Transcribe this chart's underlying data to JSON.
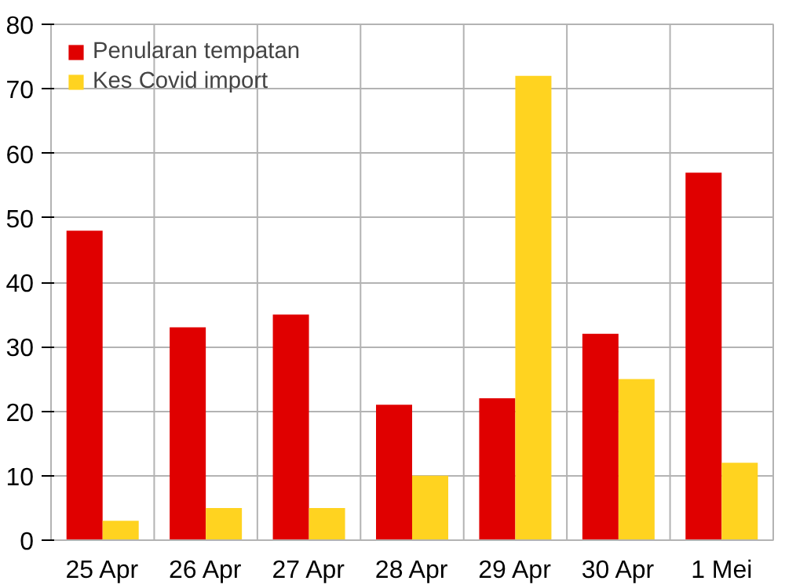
{
  "chart_data": {
    "type": "bar",
    "categories": [
      "25 Apr",
      "26 Apr",
      "27 Apr",
      "28 Apr",
      "29 Apr",
      "30 Apr",
      "1 Mei"
    ],
    "series": [
      {
        "name": "Penularan tempatan",
        "color": "#e00000",
        "values": [
          48,
          33,
          35,
          21,
          22,
          32,
          57
        ]
      },
      {
        "name": "Kes Covid import",
        "color": "#ffd320",
        "values": [
          3,
          5,
          5,
          10,
          72,
          25,
          12
        ]
      }
    ],
    "ylim": [
      0,
      80
    ],
    "yticks": [
      0,
      10,
      20,
      30,
      40,
      50,
      60,
      70,
      80
    ],
    "grid": true,
    "legend": "top left"
  }
}
